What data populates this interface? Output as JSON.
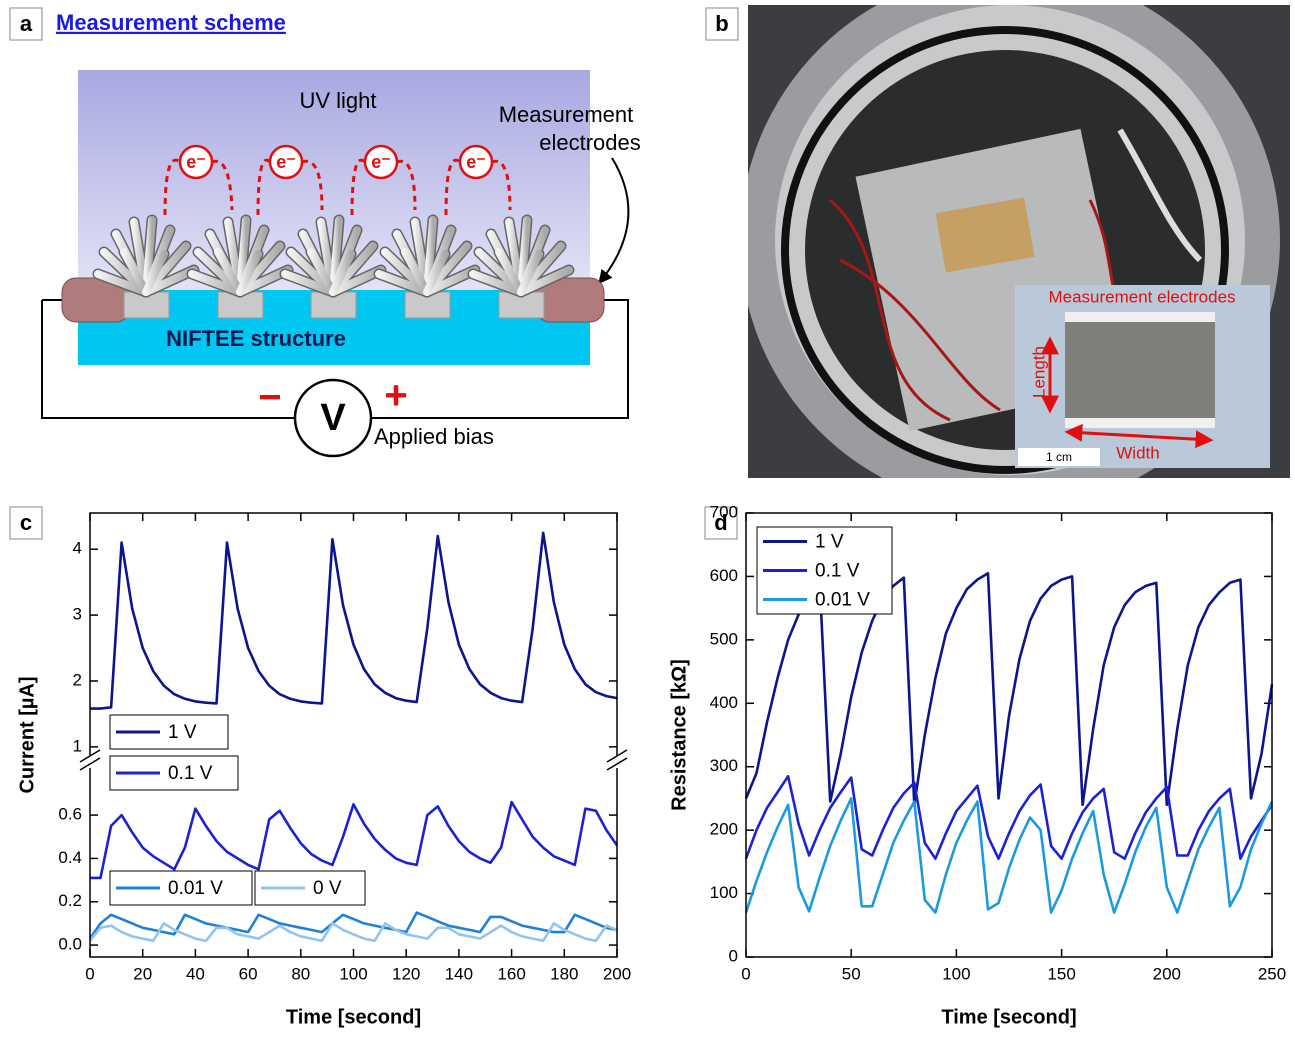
{
  "panel_a": {
    "label": "a",
    "title": "Measurement scheme",
    "uv_light": "UV light",
    "electrodes": [
      "Measurement",
      "electrodes"
    ],
    "electron": "e⁻",
    "structure": "NIFTEE structure",
    "meter": "V",
    "minus": "−",
    "plus": "+",
    "bias": "Applied bias"
  },
  "panel_b": {
    "label": "b",
    "inset_title": "Measurement electrodes",
    "length": "Length",
    "width": "Width",
    "scale_bar": "1 cm"
  },
  "chart_data": [
    {
      "type": "line",
      "label": "c",
      "xlabel": "Time [second]",
      "ylabel": "Current [µA]",
      "x": [
        0,
        4,
        8,
        12,
        16,
        20,
        24,
        28,
        32,
        36,
        40,
        44,
        48,
        52,
        56,
        60,
        64,
        68,
        72,
        76,
        80,
        84,
        88,
        92,
        96,
        100,
        104,
        108,
        112,
        116,
        120,
        124,
        128,
        132,
        136,
        140,
        144,
        148,
        152,
        156,
        160,
        164,
        168,
        172,
        176,
        180,
        184,
        188,
        192,
        196,
        200
      ],
      "xlim": [
        0,
        200
      ],
      "xticks": [
        0,
        20,
        40,
        60,
        80,
        100,
        120,
        140,
        160,
        180,
        200
      ],
      "ylim": [
        [
          -0.055,
          0.845
        ],
        [
          0.77,
          4.55
        ]
      ],
      "yticks": [
        [
          {
            "value": 0,
            "label": "0.0"
          },
          0.2,
          0.4,
          0.6
        ],
        [
          1,
          2,
          3,
          4
        ]
      ],
      "series": [
        {
          "name": "1 V",
          "color": "#0c168c",
          "values": [
            1.58,
            1.58,
            1.6,
            4.1,
            3.1,
            2.5,
            2.15,
            1.93,
            1.8,
            1.73,
            1.69,
            1.67,
            1.66,
            4.1,
            3.1,
            2.5,
            2.15,
            1.93,
            1.8,
            1.73,
            1.69,
            1.67,
            1.66,
            4.15,
            3.15,
            2.55,
            2.18,
            1.95,
            1.82,
            1.74,
            1.7,
            1.68,
            2.8,
            4.2,
            3.2,
            2.55,
            2.18,
            1.95,
            1.82,
            1.74,
            1.7,
            1.68,
            2.8,
            4.25,
            3.2,
            2.55,
            2.18,
            1.95,
            1.83,
            1.77,
            1.74
          ]
        },
        {
          "name": "0.1 V",
          "color": "#1c22d4",
          "values": [
            0.31,
            0.31,
            0.55,
            0.6,
            0.52,
            0.45,
            0.41,
            0.38,
            0.35,
            0.45,
            0.63,
            0.55,
            0.48,
            0.43,
            0.4,
            0.37,
            0.35,
            0.58,
            0.62,
            0.54,
            0.47,
            0.42,
            0.39,
            0.37,
            0.5,
            0.65,
            0.56,
            0.49,
            0.44,
            0.4,
            0.38,
            0.37,
            0.6,
            0.64,
            0.55,
            0.48,
            0.43,
            0.4,
            0.38,
            0.45,
            0.66,
            0.58,
            0.5,
            0.45,
            0.41,
            0.39,
            0.37,
            0.63,
            0.62,
            0.53,
            0.46
          ]
        },
        {
          "name": "0.01 V",
          "color": "#1f80d8",
          "values": [
            0.03,
            0.1,
            0.14,
            0.12,
            0.1,
            0.08,
            0.07,
            0.06,
            0.05,
            0.14,
            0.12,
            0.1,
            0.09,
            0.08,
            0.07,
            0.06,
            0.14,
            0.12,
            0.1,
            0.09,
            0.08,
            0.07,
            0.06,
            0.1,
            0.14,
            0.12,
            0.1,
            0.09,
            0.08,
            0.07,
            0.06,
            0.15,
            0.13,
            0.11,
            0.09,
            0.08,
            0.07,
            0.06,
            0.13,
            0.13,
            0.11,
            0.09,
            0.08,
            0.07,
            0.06,
            0.06,
            0.14,
            0.12,
            0.1,
            0.08,
            0.07
          ]
        },
        {
          "name": "0 V",
          "color": "#92c4ec",
          "values": [
            0.02,
            0.08,
            0.09,
            0.06,
            0.04,
            0.03,
            0.02,
            0.1,
            0.07,
            0.05,
            0.03,
            0.02,
            0.08,
            0.08,
            0.05,
            0.04,
            0.03,
            0.06,
            0.09,
            0.06,
            0.04,
            0.03,
            0.02,
            0.1,
            0.07,
            0.05,
            0.03,
            0.02,
            0.1,
            0.07,
            0.05,
            0.04,
            0.03,
            0.08,
            0.08,
            0.05,
            0.04,
            0.03,
            0.06,
            0.09,
            0.06,
            0.04,
            0.03,
            0.02,
            0.1,
            0.07,
            0.05,
            0.03,
            0.02,
            0.09,
            0.07
          ]
        }
      ]
    },
    {
      "type": "line",
      "label": "d",
      "xlabel": "Time [second]",
      "ylabel": "Resistance [kΩ]",
      "x": [
        0,
        5,
        10,
        15,
        20,
        25,
        30,
        35,
        40,
        45,
        50,
        55,
        60,
        65,
        70,
        75,
        80,
        85,
        90,
        95,
        100,
        105,
        110,
        115,
        120,
        125,
        130,
        135,
        140,
        145,
        150,
        155,
        160,
        165,
        170,
        175,
        180,
        185,
        190,
        195,
        200,
        205,
        210,
        215,
        220,
        225,
        230,
        235,
        240,
        245,
        250
      ],
      "xlim": [
        0,
        250
      ],
      "xticks": [
        0,
        50,
        100,
        150,
        200,
        250
      ],
      "ylim": [
        0,
        700
      ],
      "yticks": [
        0,
        100,
        200,
        300,
        400,
        500,
        600,
        700
      ],
      "series": [
        {
          "name": "1 V",
          "color": "#0c168c",
          "values": [
            250,
            290,
            370,
            440,
            500,
            540,
            570,
            595,
            245,
            320,
            410,
            480,
            530,
            565,
            585,
            598,
            240,
            350,
            440,
            510,
            550,
            580,
            595,
            605,
            250,
            380,
            470,
            530,
            565,
            585,
            595,
            600,
            240,
            360,
            460,
            520,
            555,
            575,
            585,
            590,
            240,
            360,
            460,
            520,
            555,
            575,
            590,
            595,
            250,
            320,
            430
          ]
        },
        {
          "name": "0.1 V",
          "color": "#1c22d4",
          "values": [
            155,
            200,
            235,
            260,
            285,
            210,
            160,
            200,
            235,
            260,
            283,
            170,
            160,
            200,
            235,
            258,
            275,
            180,
            155,
            195,
            230,
            250,
            270,
            190,
            155,
            195,
            230,
            255,
            272,
            175,
            155,
            195,
            228,
            250,
            265,
            165,
            155,
            195,
            228,
            250,
            268,
            160,
            160,
            200,
            230,
            250,
            265,
            155,
            190,
            215,
            240
          ]
        },
        {
          "name": "0.01 V",
          "color": "#1c9ae0",
          "values": [
            70,
            120,
            165,
            205,
            240,
            110,
            72,
            125,
            175,
            215,
            250,
            80,
            80,
            130,
            180,
            215,
            245,
            90,
            70,
            130,
            180,
            215,
            245,
            75,
            85,
            140,
            185,
            220,
            200,
            70,
            105,
            155,
            195,
            230,
            130,
            70,
            115,
            165,
            205,
            235,
            110,
            70,
            120,
            170,
            205,
            235,
            80,
            110,
            170,
            210,
            245
          ]
        }
      ]
    }
  ]
}
